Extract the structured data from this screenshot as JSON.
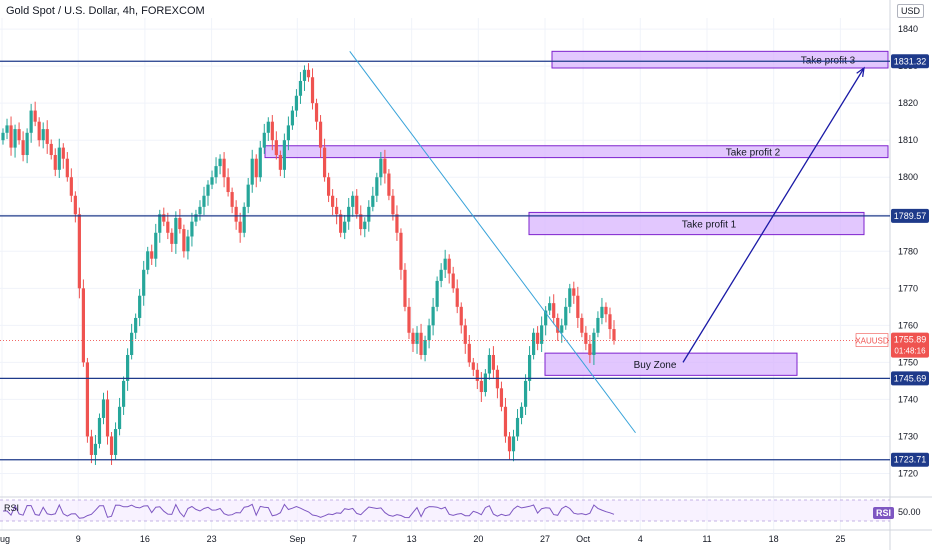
{
  "header": {
    "title": "Gold Spot / U.S. Dollar, 4h, FOREXCOM",
    "currency": "USD"
  },
  "chart_data": {
    "type": "candlestick",
    "symbol": "XAUUSD",
    "ylim": [
      1715,
      1843
    ],
    "y_ticks": [
      1720,
      1730,
      1740,
      1750,
      1760,
      1770,
      1780,
      1790,
      1800,
      1810,
      1820,
      1830,
      1840
    ],
    "x_ticks": [
      "Aug",
      "9",
      "16",
      "23",
      "Sep",
      "7",
      "13",
      "20",
      "27",
      "Oct",
      "4",
      "11",
      "18",
      "25"
    ],
    "x_tick_days": [
      0,
      8,
      15,
      22,
      31,
      37,
      43,
      50,
      57,
      61,
      67,
      74,
      81,
      88
    ],
    "series_close": [
      1812,
      1814,
      1808,
      1813,
      1810,
      1806,
      1812,
      1818,
      1815,
      1810,
      1813,
      1809,
      1806,
      1802,
      1808,
      1805,
      1800,
      1795,
      1790,
      1770,
      1750,
      1730,
      1725,
      1728,
      1735,
      1740,
      1730,
      1725,
      1732,
      1738,
      1745,
      1752,
      1758,
      1762,
      1768,
      1775,
      1780,
      1778,
      1785,
      1790,
      1788,
      1785,
      1782,
      1789,
      1786,
      1780,
      1784,
      1788,
      1790,
      1792,
      1795,
      1798,
      1800,
      1803,
      1805,
      1800,
      1796,
      1792,
      1788,
      1785,
      1792,
      1798,
      1805,
      1800,
      1808,
      1812,
      1815,
      1810,
      1806,
      1802,
      1810,
      1814,
      1818,
      1822,
      1826,
      1829,
      1827,
      1820,
      1815,
      1808,
      1800,
      1795,
      1792,
      1790,
      1785,
      1788,
      1792,
      1795,
      1790,
      1786,
      1788,
      1792,
      1795,
      1800,
      1805,
      1801,
      1795,
      1790,
      1785,
      1775,
      1765,
      1758,
      1755,
      1758,
      1752,
      1756,
      1760,
      1765,
      1772,
      1775,
      1778,
      1774,
      1770,
      1765,
      1760,
      1755,
      1750,
      1748,
      1745,
      1742,
      1747,
      1752,
      1748,
      1743,
      1738,
      1730,
      1726,
      1730,
      1735,
      1738,
      1745,
      1752,
      1758,
      1755,
      1760,
      1764,
      1766,
      1762,
      1758,
      1760,
      1765,
      1770,
      1768,
      1762,
      1758,
      1755,
      1752,
      1758,
      1762,
      1765,
      1763,
      1759,
      1756
    ],
    "levels": [
      {
        "label": "1831.32",
        "value": 1831.32
      },
      {
        "label": "1789.57",
        "value": 1789.57
      },
      {
        "label": "1745.69",
        "value": 1745.69
      },
      {
        "label": "1723.71",
        "value": 1723.71
      }
    ],
    "current_price": {
      "symbol": "XAUUSD",
      "value": 1755.89,
      "label": "1755.89",
      "countdown": "01:48:16"
    },
    "zones": [
      {
        "label": "Take profit 3",
        "y_low": 1829.5,
        "y_high": 1834.0
      },
      {
        "label": "Take profit 2",
        "y_low": 1805.3,
        "y_high": 1808.5
      },
      {
        "label": "Take profit 1",
        "y_low": 1784.5,
        "y_high": 1790.5
      },
      {
        "label": "Buy Zone",
        "y_low": 1746.5,
        "y_high": 1752.5
      }
    ],
    "rsi": {
      "label": "RSI",
      "value": "50.00"
    },
    "colors": {
      "up": "#26a69a",
      "down": "#ef5350",
      "level_line": "#1e3a8a",
      "zone_fill": "#d8b4fe",
      "zone_border": "#7e22ce",
      "trendline": "#38a3d9",
      "arrow": "#1a1aa6",
      "price_tag": "#ef5350",
      "rsi_line": "#7e57c2"
    }
  }
}
